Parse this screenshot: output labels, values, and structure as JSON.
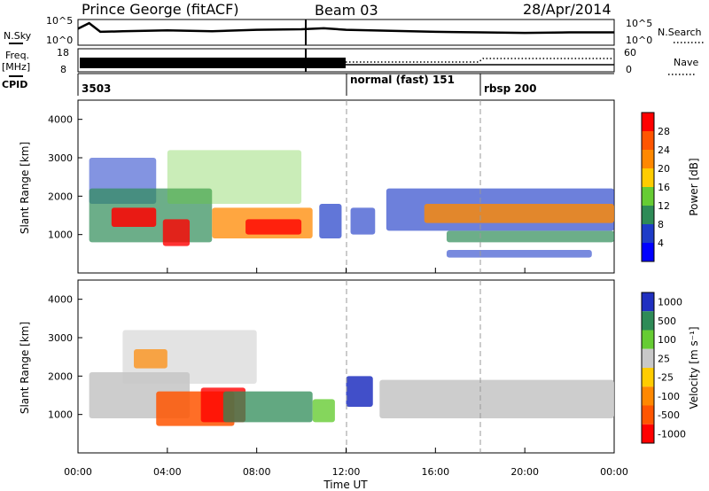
{
  "header": {
    "station": "Prince George (fitACF)",
    "beam": "Beam 03",
    "date": "28/Apr/2014"
  },
  "left_labels": {
    "nsky": "N.Sky",
    "freq": "Freq.",
    "freq_unit": "[MHz]",
    "cpid": "CPID"
  },
  "right_labels": {
    "nsearch": "N.Search",
    "nave": "Nave"
  },
  "cpid_segments": [
    {
      "label": "3503",
      "start_hour": 0
    },
    {
      "label": "normal (fast) 151",
      "start_hour": 12
    },
    {
      "label": "rbsp 200",
      "start_hour": 18
    }
  ],
  "colors": {
    "power": [
      "#0000ff",
      "#1e3cc8",
      "#2e8b57",
      "#66cc33",
      "#ffcc00",
      "#ff8800",
      "#ff5500",
      "#ff0000"
    ],
    "velocity": [
      "#2030c0",
      "#2e8b57",
      "#66cc33",
      "#c8c8c8",
      "#ffcc00",
      "#ff8800",
      "#ff5500",
      "#ff0000"
    ]
  },
  "chart_data": [
    {
      "type": "line",
      "panel": "noise",
      "y_tick_labels": [
        "10^5",
        "10^0"
      ],
      "ylim": [
        0,
        5
      ],
      "x": [
        0,
        0.5,
        1,
        2,
        4,
        6,
        8,
        10,
        11,
        12,
        14,
        16,
        18,
        20,
        22,
        24
      ],
      "series": [
        {
          "name": "N.Sky",
          "values": [
            3.2,
            4.3,
            2.6,
            2.7,
            2.9,
            2.7,
            3.0,
            3.1,
            3.3,
            3.0,
            2.8,
            2.6,
            2.5,
            2.4,
            2.5,
            2.5
          ]
        }
      ]
    },
    {
      "type": "line",
      "panel": "frequency",
      "y_tick_labels_left": [
        "18",
        "8"
      ],
      "y_tick_labels_right": [
        "60",
        "0"
      ],
      "ylim": [
        8,
        18
      ]
    },
    {
      "type": "heatmap",
      "panel": "power",
      "xlabel": "",
      "ylabel": "Slant Range [km]",
      "xlim": [
        0,
        24
      ],
      "ylim": [
        0,
        4500
      ],
      "y_ticks": [
        1000,
        2000,
        3000,
        4000
      ],
      "colorbar_label": "Power [dB]",
      "colorbar_ticks": [
        "4",
        "8",
        "12",
        "16",
        "20",
        "24",
        "28"
      ]
    },
    {
      "type": "heatmap",
      "panel": "velocity",
      "xlabel": "Time UT",
      "ylabel": "Slant Range [km]",
      "xlim": [
        0,
        24
      ],
      "ylim": [
        0,
        4500
      ],
      "x_tick_labels": [
        "00:00",
        "04:00",
        "08:00",
        "12:00",
        "16:00",
        "20:00",
        "00:00"
      ],
      "y_ticks": [
        1000,
        2000,
        3000,
        4000
      ],
      "colorbar_label": "Velocity [m s⁻¹]",
      "colorbar_ticks": [
        "1000",
        "500",
        "100",
        "25",
        "-25",
        "-100",
        "-500",
        "-1000"
      ]
    }
  ]
}
